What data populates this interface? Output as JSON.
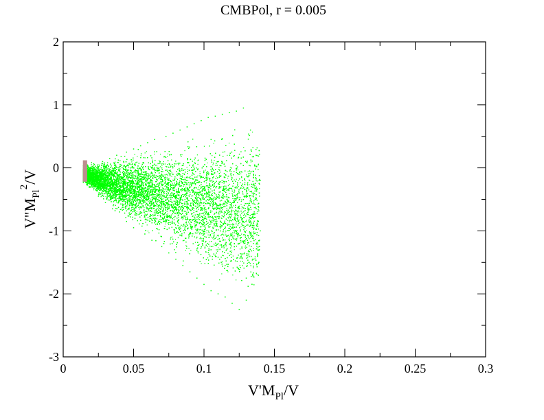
{
  "chart_data": {
    "type": "scatter",
    "title": "CMBPol, r = 0.005",
    "xlabel": {
      "base": "V'M",
      "sub": "Pl",
      "tail": "/V"
    },
    "ylabel": {
      "base": "V\"M",
      "sub": "Pl",
      "sup": "2",
      "tail": "/V"
    },
    "xlim": [
      0,
      0.3
    ],
    "ylim": [
      -3,
      2
    ],
    "xticks": [
      0,
      0.05,
      0.1,
      0.15,
      0.2,
      0.25,
      0.3
    ],
    "xtick_labels": [
      "0",
      "0.05",
      "0.1",
      "0.15",
      "0.2",
      "0.25",
      "0.3"
    ],
    "yticks": [
      -3,
      -2,
      -1,
      0,
      1,
      2
    ],
    "ytick_labels": [
      "-3",
      "-2",
      "-1",
      "0",
      "1",
      "2"
    ],
    "grid": false,
    "series": [
      {
        "color": "#00ff00",
        "marker": "dot",
        "region": "dense wedge from x≈0.014 to x≈0.14",
        "points": [
          [
            0.015,
            -0.05
          ],
          [
            0.016,
            -0.1
          ],
          [
            0.017,
            0.05
          ],
          [
            0.018,
            -0.2
          ],
          [
            0.02,
            -0.3
          ],
          [
            0.02,
            0.05
          ],
          [
            0.023,
            -0.35
          ],
          [
            0.025,
            0.0
          ],
          [
            0.025,
            -0.45
          ],
          [
            0.028,
            0.1
          ],
          [
            0.03,
            -0.25
          ],
          [
            0.03,
            -0.55
          ],
          [
            0.033,
            0.15
          ],
          [
            0.035,
            -0.4
          ],
          [
            0.035,
            -0.65
          ],
          [
            0.038,
            0.2
          ],
          [
            0.04,
            -0.05
          ],
          [
            0.04,
            -0.7
          ],
          [
            0.043,
            -0.3
          ],
          [
            0.045,
            0.25
          ],
          [
            0.045,
            -0.85
          ],
          [
            0.048,
            -0.55
          ],
          [
            0.05,
            0.3
          ],
          [
            0.05,
            -0.95
          ],
          [
            0.053,
            -0.15
          ],
          [
            0.055,
            -0.7
          ],
          [
            0.055,
            0.35
          ],
          [
            0.058,
            -1.05
          ],
          [
            0.06,
            -0.35
          ],
          [
            0.06,
            0.4
          ],
          [
            0.063,
            -1.15
          ],
          [
            0.065,
            -0.8
          ],
          [
            0.065,
            0.45
          ],
          [
            0.068,
            0.0
          ],
          [
            0.07,
            -1.25
          ],
          [
            0.07,
            -0.5
          ],
          [
            0.073,
            0.5
          ],
          [
            0.075,
            -1.35
          ],
          [
            0.075,
            -0.2
          ],
          [
            0.078,
            0.55
          ],
          [
            0.08,
            -0.95
          ],
          [
            0.08,
            -1.45
          ],
          [
            0.083,
            0.6
          ],
          [
            0.085,
            -0.6
          ],
          [
            0.085,
            -1.55
          ],
          [
            0.088,
            0.65
          ],
          [
            0.09,
            -0.3
          ],
          [
            0.09,
            -1.65
          ],
          [
            0.093,
            0.7
          ],
          [
            0.095,
            -1.1
          ],
          [
            0.095,
            -1.75
          ],
          [
            0.098,
            0.75
          ],
          [
            0.1,
            -0.75
          ],
          [
            0.1,
            -1.85
          ],
          [
            0.103,
            0.8
          ],
          [
            0.105,
            -1.3
          ],
          [
            0.105,
            -1.95
          ],
          [
            0.108,
            0.82
          ],
          [
            0.11,
            -0.45
          ],
          [
            0.11,
            -2.0
          ],
          [
            0.113,
            0.85
          ],
          [
            0.115,
            -1.55
          ],
          [
            0.115,
            -2.05
          ],
          [
            0.118,
            0.88
          ],
          [
            0.12,
            -0.95
          ],
          [
            0.12,
            -2.15
          ],
          [
            0.123,
            0.9
          ],
          [
            0.125,
            -2.25
          ],
          [
            0.125,
            -0.1
          ],
          [
            0.128,
            0.95
          ],
          [
            0.13,
            -1.75
          ],
          [
            0.13,
            -2.1
          ],
          [
            0.133,
            0.6
          ],
          [
            0.135,
            -1.2
          ],
          [
            0.135,
            -0.4
          ],
          [
            0.137,
            0.2
          ],
          [
            0.138,
            -0.9
          ],
          [
            0.139,
            -1.5
          ],
          [
            0.14,
            -0.2
          ],
          [
            0.14,
            -1.0
          ]
        ]
      },
      {
        "color": "#bc8f8f",
        "marker": "rect",
        "points": [
          [
            0.014,
            0.12
          ],
          [
            0.017,
            -0.22
          ]
        ]
      }
    ]
  }
}
